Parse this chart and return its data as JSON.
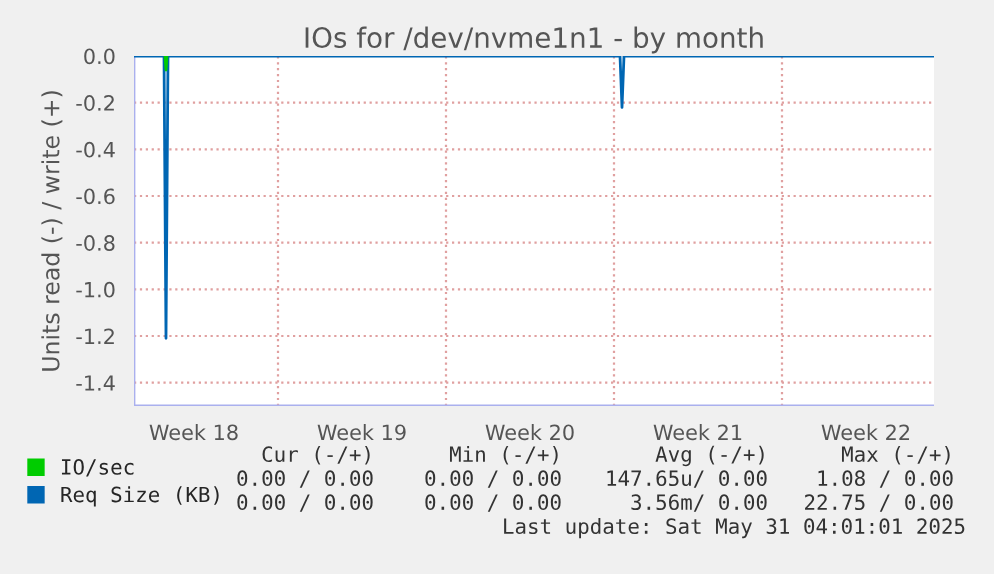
{
  "chart_data": {
    "type": "line",
    "title": "IOs for /dev/nvme1n1 - by month",
    "ylabel": "Units read (-) / write (+)",
    "xlim": [
      "2025-04-29T00:00",
      "2025-06-01T08:00"
    ],
    "xticks": [
      {
        "value": "2025-05-01T12:00",
        "label": "Week 18"
      },
      {
        "value": "2025-05-08T12:00",
        "label": "Week 19"
      },
      {
        "value": "2025-05-15T12:00",
        "label": "Week 20"
      },
      {
        "value": "2025-05-22T12:00",
        "label": "Week 21"
      },
      {
        "value": "2025-05-29T12:00",
        "label": "Week 22"
      },
      {
        "value": "2025-05-05",
        "label": null
      },
      {
        "value": "2025-05-12",
        "label": null
      },
      {
        "value": "2025-05-19",
        "label": null
      },
      {
        "value": "2025-05-26",
        "label": null
      }
    ],
    "ylim": [
      -1.5,
      0.0
    ],
    "yticks": [
      {
        "value": 0.0,
        "label": "0.0"
      },
      {
        "value": -0.2,
        "label": "-0.2"
      },
      {
        "value": -0.4,
        "label": "-0.4"
      },
      {
        "value": -0.6,
        "label": "-0.6"
      },
      {
        "value": -0.8,
        "label": "-0.8"
      },
      {
        "value": -1.0,
        "label": "-1.0"
      },
      {
        "value": -1.2,
        "label": "-1.2"
      },
      {
        "value": -1.4,
        "label": "-1.4"
      }
    ],
    "grid": true,
    "legend": "bottom left",
    "series": [
      {
        "name": "IO/sec",
        "color": "#00cc00",
        "x": [
          "2025-04-30T07:00",
          "2025-04-30T08:00",
          "2025-04-30T09:00"
        ],
        "values": [
          0.0,
          -0.06,
          0.0
        ]
      },
      {
        "name": "Req Size (KB)",
        "color": "#0066b3",
        "x": [
          "2025-04-29T00:00",
          "2025-04-30T06:00",
          "2025-04-30T08:00",
          "2025-04-30T10:00",
          "2025-05-19T06:00",
          "2025-05-19T08:00",
          "2025-05-19T10:00",
          "2025-06-01T08:00"
        ],
        "values": [
          0.0,
          0.0,
          -1.21,
          0.0,
          0.0,
          -0.22,
          0.0,
          0.0
        ]
      }
    ],
    "annotations": [
      "Cur (-/+)",
      "Min (-/+)",
      "Avg (-/+)",
      "Max (-/+)",
      "0.00 / 0.00",
      "0.00 / 0.00",
      "147.65u/ 0.00",
      "1.08 / 0.00",
      "0.00 / 0.00",
      "0.00 / 0.00",
      "3.56m/ 0.00",
      "22.75 / 0.00",
      "Last update: Sat May 31 04:01:01 2025"
    ]
  }
}
